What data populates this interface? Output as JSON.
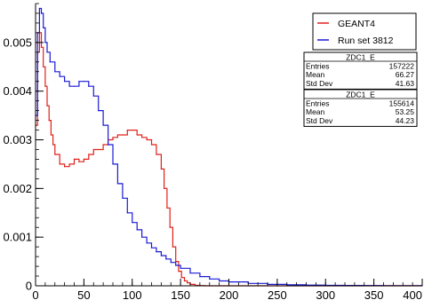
{
  "chart_data": {
    "type": "line",
    "title": "",
    "xlabel": "",
    "ylabel": "",
    "xlim": [
      0,
      400
    ],
    "ylim": [
      0,
      0.0058
    ],
    "grid": false,
    "legend_position": "top-right",
    "x_ticks": [
      {
        "value": 0,
        "label": "0"
      },
      {
        "value": 50,
        "label": "50"
      },
      {
        "value": 100,
        "label": "100"
      },
      {
        "value": 150,
        "label": "150"
      },
      {
        "value": 200,
        "label": "200"
      },
      {
        "value": 250,
        "label": "250"
      },
      {
        "value": 300,
        "label": "300"
      },
      {
        "value": 350,
        "label": "350"
      },
      {
        "value": 400,
        "label": "400"
      }
    ],
    "y_ticks": [
      {
        "value": 0,
        "label": "0"
      },
      {
        "value": 0.001,
        "label": "0.001"
      },
      {
        "value": 0.002,
        "label": "0.002"
      },
      {
        "value": 0.003,
        "label": "0.003"
      },
      {
        "value": 0.004,
        "label": "0.004"
      },
      {
        "value": 0.005,
        "label": "0.005"
      }
    ],
    "series": [
      {
        "name": "GEANT4",
        "color": "#e0201b",
        "x": [
          0,
          2,
          4,
          6,
          8,
          10,
          12,
          14,
          16,
          18,
          20,
          25,
          30,
          35,
          40,
          45,
          50,
          55,
          60,
          65,
          70,
          75,
          80,
          85,
          90,
          95,
          100,
          105,
          110,
          115,
          120,
          125,
          130,
          133,
          136,
          139,
          142,
          145,
          148,
          151,
          154,
          157,
          160,
          165,
          170,
          175,
          180,
          200,
          250,
          300,
          350,
          400
        ],
        "y": [
          0.0033,
          0.0048,
          0.0052,
          0.0049,
          0.0045,
          0.0041,
          0.0037,
          0.0034,
          0.0031,
          0.0029,
          0.0027,
          0.0025,
          0.00245,
          0.0025,
          0.0026,
          0.00255,
          0.0026,
          0.0027,
          0.0028,
          0.0028,
          0.0029,
          0.003,
          0.00305,
          0.0031,
          0.0031,
          0.0032,
          0.0032,
          0.0031,
          0.00305,
          0.003,
          0.0029,
          0.0027,
          0.0024,
          0.002,
          0.0016,
          0.0012,
          0.0008,
          0.0005,
          0.0003,
          0.00017,
          0.0001,
          6e-05,
          3e-05,
          1e-05,
          5e-06,
          0.0,
          0.0,
          0.0,
          0.0,
          0.0,
          0.0,
          0.0
        ]
      },
      {
        "name": "Run set 3812",
        "color": "#1a1ad6",
        "x": [
          0,
          2,
          4,
          6,
          8,
          10,
          12,
          15,
          20,
          25,
          30,
          35,
          40,
          45,
          50,
          55,
          60,
          65,
          70,
          75,
          80,
          85,
          90,
          95,
          100,
          105,
          110,
          115,
          120,
          125,
          130,
          135,
          140,
          145,
          150,
          160,
          170,
          180,
          190,
          200,
          220,
          240,
          260,
          280,
          300,
          320,
          340,
          360,
          380,
          400
        ],
        "y": [
          0.0035,
          0.0052,
          0.0057,
          0.0056,
          0.0053,
          0.005,
          0.0048,
          0.0046,
          0.0044,
          0.0043,
          0.0042,
          0.0041,
          0.0041,
          0.0042,
          0.0042,
          0.0041,
          0.0039,
          0.0036,
          0.0033,
          0.0029,
          0.0025,
          0.0021,
          0.0018,
          0.0015,
          0.0013,
          0.00115,
          0.001,
          0.00088,
          0.00078,
          0.0007,
          0.00062,
          0.00055,
          0.00048,
          0.00042,
          0.00036,
          0.00026,
          0.00019,
          0.00014,
          0.0001,
          8e-05,
          5e-05,
          3e-05,
          2e-05,
          1.5e-05,
          1e-05,
          8e-06,
          5e-06,
          4e-06,
          3e-06,
          2e-06
        ]
      }
    ],
    "legend": [
      {
        "label": "GEANT4",
        "color": "#e0201b"
      },
      {
        "label": "Run set 3812",
        "color": "#1a1ad6"
      }
    ],
    "stats_boxes": [
      {
        "title": "ZDC1_E",
        "rows": [
          {
            "label": "Entries",
            "value": "157222"
          },
          {
            "label": "Mean",
            "value": "66.27"
          },
          {
            "label": "Std Dev",
            "value": "41.63"
          }
        ]
      },
      {
        "title": "ZDC1_E",
        "rows": [
          {
            "label": "Entries",
            "value": "155614"
          },
          {
            "label": "Mean",
            "value": "53.25"
          },
          {
            "label": "Std Dev",
            "value": "44.23"
          }
        ]
      }
    ]
  }
}
